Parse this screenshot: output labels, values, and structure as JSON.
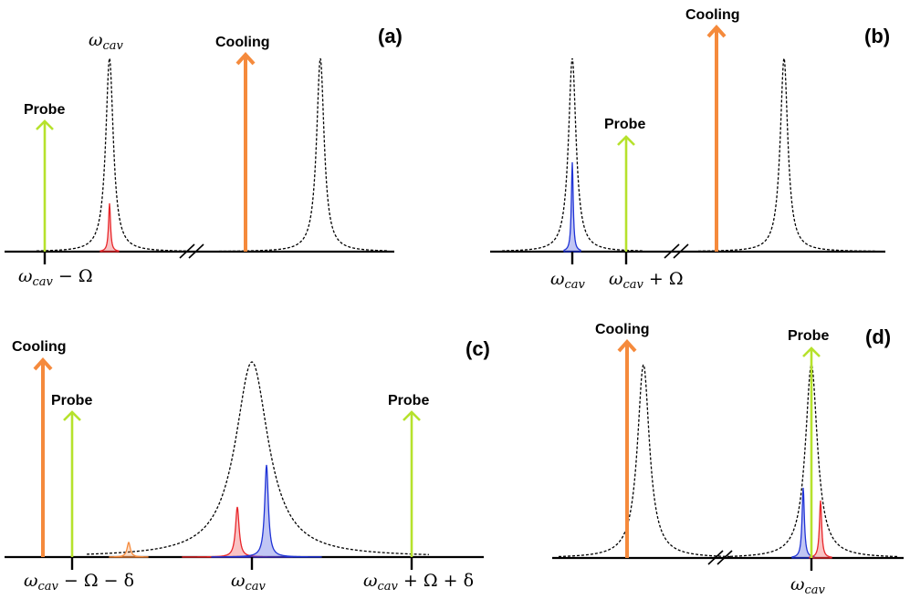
{
  "colors": {
    "cooling": "#f58a3c",
    "probe": "#b6e22c",
    "red_peak": "#e8262a",
    "blue_peak": "#1f33d6",
    "cavity_curve": "#000000"
  },
  "panels": {
    "a": {
      "label": "(a)",
      "cooling": "Cooling",
      "probe": "Probe",
      "top_label": {
        "main": "ω",
        "sub": "cav"
      },
      "tick_label": {
        "main": "ω",
        "sub": "cav",
        "rest": " − Ω"
      }
    },
    "b": {
      "label": "(b)",
      "cooling": "Cooling",
      "probe": "Probe",
      "tick1": {
        "main": "ω",
        "sub": "cav"
      },
      "tick2": {
        "main": "ω",
        "sub": "cav",
        "rest": " + Ω"
      }
    },
    "c": {
      "label": "(c)",
      "cooling": "Cooling",
      "probe_left": "Probe",
      "probe_right": "Probe",
      "tick1": {
        "main": "ω",
        "sub": "cav",
        "rest": " − Ω − δ"
      },
      "tick2": {
        "main": "ω",
        "sub": "cav"
      },
      "tick3": {
        "main": "ω",
        "sub": "cav",
        "rest": " + Ω + δ"
      }
    },
    "d": {
      "label": "(d)",
      "cooling": "Cooling",
      "probe": "Probe",
      "tick1": {
        "main": "ω",
        "sub": "cav"
      }
    }
  }
}
